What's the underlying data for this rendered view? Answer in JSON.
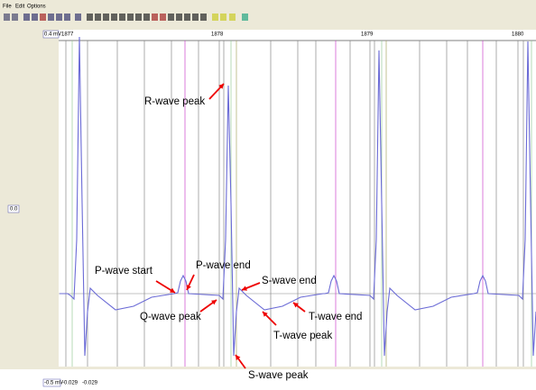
{
  "menu": [
    "File",
    "Edit",
    "Options"
  ],
  "axis": {
    "top_labels": [
      "1877",
      "1878",
      "1879",
      "1880"
    ],
    "y_top": "0.4 mV",
    "y_mid": "0.0",
    "y_bottom": "-0.5 mV",
    "bottom_values": [
      "-0.029",
      "-0.029"
    ]
  },
  "annotations": [
    "R-wave peak",
    "P-wave start",
    "P-wave end",
    "S-wave end",
    "Q-wave peak",
    "T-wave end",
    "T-wave peak",
    "S-wave peak"
  ]
}
